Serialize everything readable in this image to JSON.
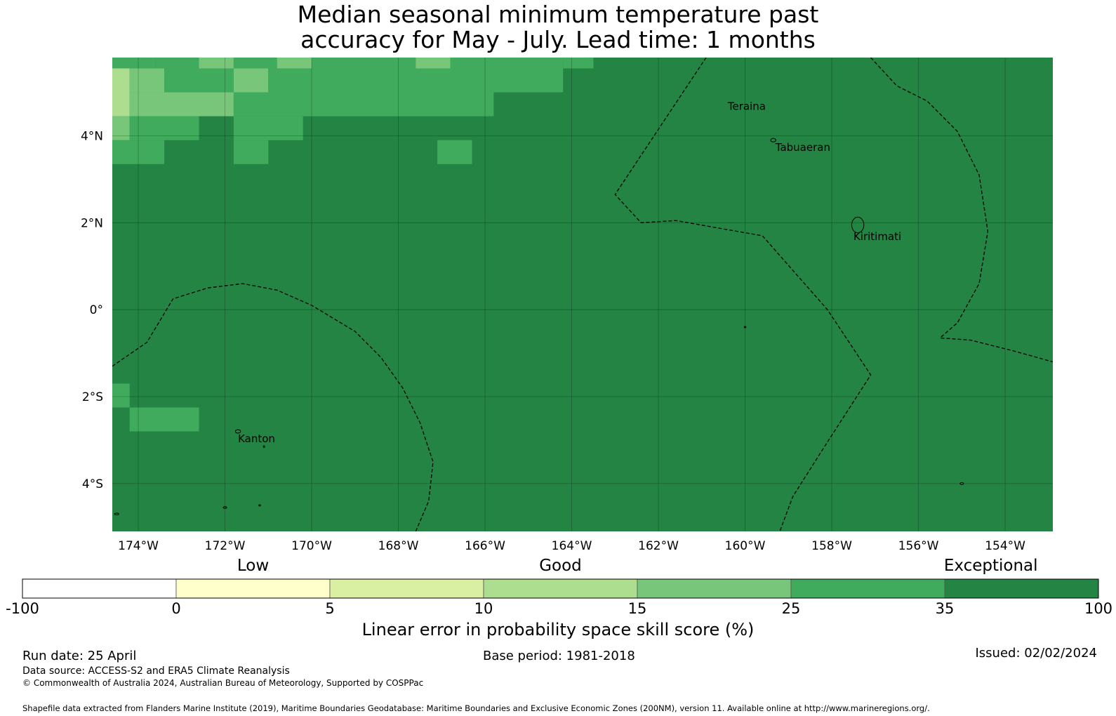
{
  "title": {
    "line1": "Median seasonal minimum temperature past",
    "line2": "accuracy for May - July. Lead time: 1 months"
  },
  "map": {
    "lon_range": [
      -174.6,
      -152.9
    ],
    "lat_range": [
      -5.1,
      5.8
    ],
    "lon_ticks": [
      {
        "value": -174,
        "label": "174°W"
      },
      {
        "value": -172,
        "label": "172°W"
      },
      {
        "value": -170,
        "label": "170°W"
      },
      {
        "value": -168,
        "label": "168°W"
      },
      {
        "value": -166,
        "label": "166°W"
      },
      {
        "value": -164,
        "label": "164°W"
      },
      {
        "value": -162,
        "label": "162°W"
      },
      {
        "value": -160,
        "label": "160°W"
      },
      {
        "value": -158,
        "label": "158°W"
      },
      {
        "value": -156,
        "label": "156°W"
      },
      {
        "value": -154,
        "label": "154°W"
      }
    ],
    "lat_ticks": [
      {
        "value": 4,
        "label": "4°N"
      },
      {
        "value": 2,
        "label": "2°N"
      },
      {
        "value": 0,
        "label": "0°"
      },
      {
        "value": -2,
        "label": "2°S"
      },
      {
        "value": -4,
        "label": "4°S"
      }
    ],
    "place_labels": [
      {
        "name": "Teraina",
        "label": "Teraina",
        "lon": -160.4,
        "lat": 4.6
      },
      {
        "name": "Tabuaeran",
        "label": "Tabuaeran",
        "lon": -159.3,
        "lat": 3.65
      },
      {
        "name": "Kiritimati",
        "label": "Kiritimati",
        "lon": -157.5,
        "lat": 1.6
      },
      {
        "name": "Kanton",
        "label": "Kanton",
        "lon": -171.7,
        "lat": -3.05
      }
    ],
    "background_category": 6,
    "cells": [
      {
        "lon": [
          -174.6,
          -173.6
        ],
        "lat": [
          5.55,
          5.8
        ],
        "cat": 5
      },
      {
        "lon": [
          -173.6,
          -172.6
        ],
        "lat": [
          5.55,
          5.8
        ],
        "cat": 5
      },
      {
        "lon": [
          -172.6,
          -171.8
        ],
        "lat": [
          5.55,
          5.8
        ],
        "cat": 4
      },
      {
        "lon": [
          -171.8,
          -170.8
        ],
        "lat": [
          5.55,
          5.8
        ],
        "cat": 5
      },
      {
        "lon": [
          -170.8,
          -170.0
        ],
        "lat": [
          5.55,
          5.8
        ],
        "cat": 4
      },
      {
        "lon": [
          -170.0,
          -167.6
        ],
        "lat": [
          5.55,
          5.8
        ],
        "cat": 5
      },
      {
        "lon": [
          -167.6,
          -166.8
        ],
        "lat": [
          5.55,
          5.8
        ],
        "cat": 4
      },
      {
        "lon": [
          -166.8,
          -164.2
        ],
        "lat": [
          5.55,
          5.8
        ],
        "cat": 5
      },
      {
        "lon": [
          -164.2,
          -163.5
        ],
        "lat": [
          5.55,
          5.8
        ],
        "cat": 5
      },
      {
        "lon": [
          -174.6,
          -174.2
        ],
        "lat": [
          4.45,
          5.55
        ],
        "cat": 3
      },
      {
        "lon": [
          -174.2,
          -173.4
        ],
        "lat": [
          5.0,
          5.55
        ],
        "cat": 4
      },
      {
        "lon": [
          -173.4,
          -171.8
        ],
        "lat": [
          5.0,
          5.55
        ],
        "cat": 5
      },
      {
        "lon": [
          -171.8,
          -171.0
        ],
        "lat": [
          5.0,
          5.55
        ],
        "cat": 4
      },
      {
        "lon": [
          -171.0,
          -164.2
        ],
        "lat": [
          5.0,
          5.55
        ],
        "cat": 5
      },
      {
        "lon": [
          -174.2,
          -171.8
        ],
        "lat": [
          4.45,
          5.0
        ],
        "cat": 4
      },
      {
        "lon": [
          -171.8,
          -165.8
        ],
        "lat": [
          4.45,
          5.0
        ],
        "cat": 5
      },
      {
        "lon": [
          -174.6,
          -174.2
        ],
        "lat": [
          3.9,
          4.45
        ],
        "cat": 4
      },
      {
        "lon": [
          -174.2,
          -172.6
        ],
        "lat": [
          3.9,
          4.45
        ],
        "cat": 5
      },
      {
        "lon": [
          -171.8,
          -170.2
        ],
        "lat": [
          3.9,
          4.45
        ],
        "cat": 5
      },
      {
        "lon": [
          -174.6,
          -173.4
        ],
        "lat": [
          3.35,
          3.9
        ],
        "cat": 5
      },
      {
        "lon": [
          -171.8,
          -171.0
        ],
        "lat": [
          3.35,
          3.9
        ],
        "cat": 5
      },
      {
        "lon": [
          -167.1,
          -166.3
        ],
        "lat": [
          3.35,
          3.9
        ],
        "cat": 5
      },
      {
        "lon": [
          -174.6,
          -174.2
        ],
        "lat": [
          -2.25,
          -1.7
        ],
        "cat": 5
      },
      {
        "lon": [
          -174.2,
          -172.6
        ],
        "lat": [
          -2.8,
          -2.25
        ],
        "cat": 5
      }
    ],
    "boundaries": [
      [
        [
          -174.6,
          -1.3
        ],
        [
          -173.8,
          -0.75
        ],
        [
          -173.2,
          0.25
        ],
        [
          -172.4,
          0.5
        ],
        [
          -171.6,
          0.6
        ],
        [
          -170.8,
          0.45
        ],
        [
          -170.0,
          0.1
        ],
        [
          -169.0,
          -0.5
        ],
        [
          -168.4,
          -1.1
        ],
        [
          -167.9,
          -1.8
        ],
        [
          -167.5,
          -2.6
        ],
        [
          -167.2,
          -3.5
        ],
        [
          -167.3,
          -4.4
        ],
        [
          -167.6,
          -5.1
        ]
      ],
      [
        [
          -160.9,
          5.8
        ],
        [
          -163.0,
          2.65
        ],
        [
          -162.4,
          2.0
        ],
        [
          -161.6,
          2.05
        ],
        [
          -159.6,
          1.7
        ],
        [
          -158.1,
          0.0
        ],
        [
          -157.1,
          -1.5
        ],
        [
          -158.2,
          -3.2
        ],
        [
          -158.9,
          -4.3
        ],
        [
          -159.2,
          -5.1
        ]
      ],
      [
        [
          -157.1,
          5.8
        ],
        [
          -156.5,
          5.15
        ],
        [
          -155.8,
          4.8
        ],
        [
          -155.1,
          4.1
        ],
        [
          -154.6,
          3.1
        ],
        [
          -154.4,
          1.8
        ],
        [
          -154.6,
          0.6
        ],
        [
          -155.1,
          -0.3
        ],
        [
          -155.5,
          -0.65
        ],
        [
          -154.8,
          -0.7
        ],
        [
          -153.8,
          -0.95
        ],
        [
          -152.9,
          -1.2
        ]
      ]
    ],
    "islands": [
      {
        "lon": -159.35,
        "lat": 3.9,
        "rx": 0.06,
        "ry": 0.04
      },
      {
        "lon": -157.4,
        "lat": 1.95,
        "rx": 0.14,
        "ry": 0.18
      },
      {
        "lon": -171.7,
        "lat": -2.8,
        "rx": 0.06,
        "ry": 0.04
      },
      {
        "lon": -171.1,
        "lat": -3.15,
        "rx": 0.01,
        "ry": 0.02
      },
      {
        "lon": -172.0,
        "lat": -4.55,
        "rx": 0.04,
        "ry": 0.02
      },
      {
        "lon": -171.2,
        "lat": -4.5,
        "rx": 0.02,
        "ry": 0.015
      },
      {
        "lon": -155.0,
        "lat": -4.0,
        "rx": 0.04,
        "ry": 0.025
      },
      {
        "lon": -174.5,
        "lat": -4.7,
        "rx": 0.05,
        "ry": 0.02
      },
      {
        "lon": -160.0,
        "lat": -0.4,
        "rx": 0.02,
        "ry": 0.01
      }
    ]
  },
  "colorbar": {
    "colors": [
      "#ffffff",
      "#ffffcc",
      "#d9f0a3",
      "#addd8e",
      "#78c679",
      "#41ab5d",
      "#238443"
    ],
    "boundaries": [
      "-100",
      "0",
      "5",
      "10",
      "15",
      "25",
      "35",
      "100"
    ],
    "category_labels": [
      {
        "text": "Low",
        "segment_pos": 1.5
      },
      {
        "text": "Good",
        "segment_pos": 3.5
      },
      {
        "text": "Exceptional",
        "segment_pos": 6.3
      }
    ],
    "label": "Linear error in probability space skill score (%)"
  },
  "footer": {
    "run_date": "Run date: 25 April",
    "base_period": "Base period: 1981-2018",
    "issued": "Issued: 02/02/2024",
    "data_source": "Data source: ACCESS-S2 and ERA5 Climate Reanalysis",
    "copyright": "© Commonwealth of Australia 2024, Australian Bureau of Meteorology, Supported by COSPPac",
    "shapefile": "Shapefile data extracted from Flanders Marine Institute (2019), Maritime Boundaries Geodatabase: Maritime Boundaries and Exclusive Economic Zones (200NM), version 11. Available online at http://www.marineregions.org/."
  }
}
